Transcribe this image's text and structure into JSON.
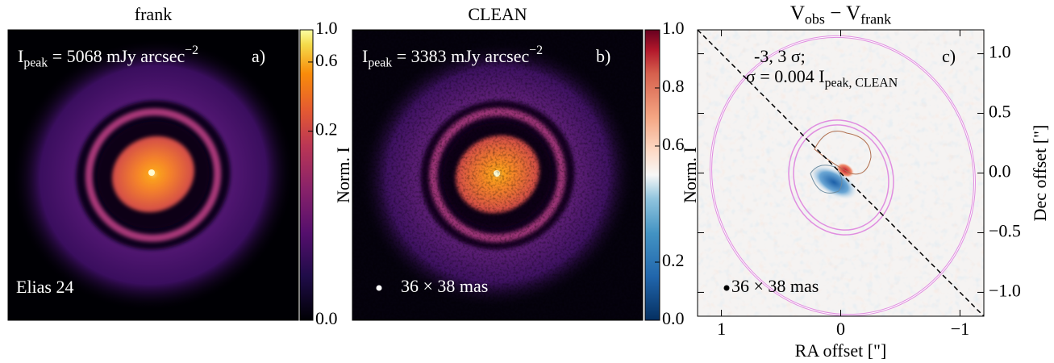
{
  "chart_data": [
    {
      "type": "image",
      "title": "frank",
      "peak_label": [
        {
          "text": "I"
        },
        {
          "text": "peak",
          "shift": "sub"
        },
        {
          "text": " = 5068 mJy arcsec"
        },
        {
          "text": "−2",
          "shift": "super"
        }
      ],
      "panel_label": "a)",
      "source": "Elias 24",
      "colorbar": {
        "label": "Norm. I",
        "colormap": "inferno",
        "scale": "asinh",
        "lim": [
          0,
          1
        ],
        "ticks": [
          {
            "value": 0,
            "label": "0.0"
          },
          0.2,
          0.6,
          {
            "value": 1,
            "label": "1.0"
          }
        ]
      }
    },
    {
      "type": "image",
      "title": "CLEAN",
      "peak_label": [
        {
          "text": "I"
        },
        {
          "text": "peak",
          "shift": "sub"
        },
        {
          "text": " = 3383 mJy arcsec"
        },
        {
          "text": "−2",
          "shift": "super"
        }
      ],
      "panel_label": "b)",
      "beam": "36 × 38 mas",
      "colorbar": {
        "label": "Norm. I",
        "colormap": "RdBu_r",
        "scale": "linear",
        "lim": [
          0,
          1
        ],
        "ticks": [
          {
            "value": 0,
            "label": "0.0"
          },
          0.2,
          0.6,
          0.8,
          {
            "value": 1,
            "label": "1.0"
          }
        ]
      }
    },
    {
      "type": "residual",
      "title_parts": [
        {
          "text": "V"
        },
        {
          "text": "obs",
          "shift": "sub"
        },
        {
          "text": " − V"
        },
        {
          "text": "frank",
          "shift": "sub"
        }
      ],
      "contour_label": "-3, 3 σ;",
      "sigma_label": [
        {
          "text": "σ = 0.004 I"
        },
        {
          "text": "peak, CLEAN",
          "shift": "sub"
        }
      ],
      "panel_label": "c)",
      "beam": "36 × 38 mas",
      "xlabel": "RA offset [\"]",
      "ylabel": "Dec offset [\"]",
      "xlim": [
        1.2,
        -1.2
      ],
      "ylim": [
        -1.2,
        1.2
      ],
      "xticks": [
        1,
        0,
        {
          "value": -1,
          "label": "−1"
        }
      ],
      "yticks": [
        {
          "value": -1,
          "label": "−1.0"
        },
        {
          "value": -0.5,
          "label": "−0.5"
        },
        {
          "value": 0,
          "label": "0.0"
        },
        0.5,
        {
          "value": 1,
          "label": "1.0"
        }
      ]
    }
  ]
}
